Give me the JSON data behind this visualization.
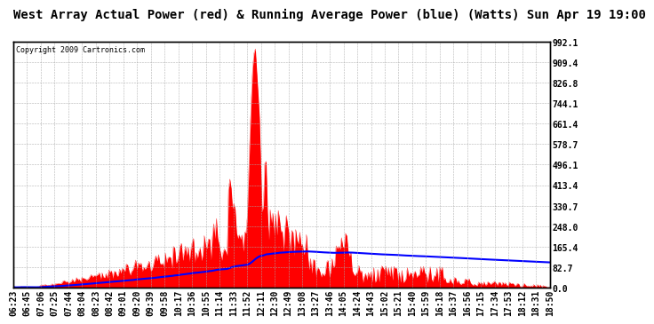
{
  "title": "West Array Actual Power (red) & Running Average Power (blue) (Watts) Sun Apr 19 19:00",
  "copyright": "Copyright 2009 Cartronics.com",
  "ylabel_right_values": [
    992.1,
    909.4,
    826.8,
    744.1,
    661.4,
    578.7,
    496.1,
    413.4,
    330.7,
    248.0,
    165.4,
    82.7,
    0.0
  ],
  "ymax": 992.1,
  "ymin": 0.0,
  "background_color": "#ffffff",
  "plot_bg_color": "#ffffff",
  "grid_color": "#aaaaaa",
  "red_color": "#ff0000",
  "blue_color": "#0000ff",
  "title_fontsize": 10,
  "copyright_fontsize": 6,
  "tick_fontsize": 7,
  "time_labels": [
    "06:23",
    "06:45",
    "07:06",
    "07:25",
    "07:44",
    "08:04",
    "08:23",
    "08:42",
    "09:01",
    "09:20",
    "09:39",
    "09:58",
    "10:17",
    "10:36",
    "10:55",
    "11:14",
    "11:33",
    "11:52",
    "12:11",
    "12:30",
    "12:49",
    "13:08",
    "13:27",
    "13:46",
    "14:05",
    "14:24",
    "14:43",
    "15:02",
    "15:21",
    "15:40",
    "15:59",
    "16:18",
    "16:37",
    "16:56",
    "17:15",
    "17:34",
    "17:53",
    "18:12",
    "18:31",
    "18:50"
  ]
}
